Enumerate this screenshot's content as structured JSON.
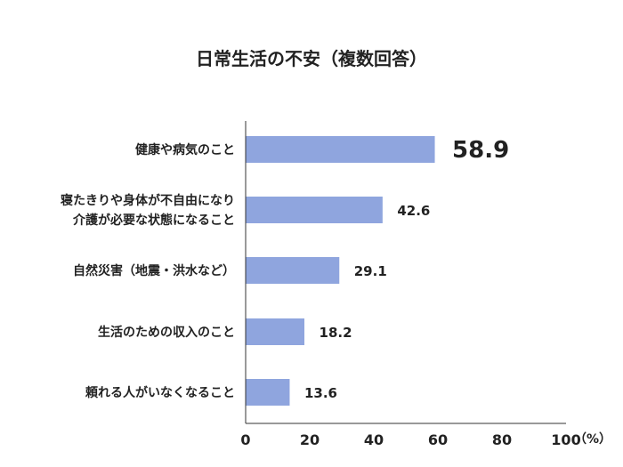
{
  "chart_data": {
    "type": "bar",
    "orientation": "horizontal",
    "title": "日常生活の不安（複数回答）",
    "categories": [
      [
        "健康や病気のこと"
      ],
      [
        "寝たきりや身体が不自由になり",
        "介護が必要な状態になること"
      ],
      [
        "自然災害（地震・洪水など）"
      ],
      [
        "生活のための収入のこと"
      ],
      [
        "頼れる人がいなくなること"
      ]
    ],
    "values": [
      58.9,
      42.6,
      29.1,
      18.2,
      13.6
    ],
    "value_labels": [
      "58.9",
      "42.6",
      "29.1",
      "18.2",
      "13.6"
    ],
    "xlim": [
      0,
      100
    ],
    "x_ticks": [
      "0",
      "20",
      "40",
      "60",
      "80",
      "100"
    ],
    "x_unit": "（%）",
    "bar_color": "#8fa5de",
    "grid": false
  }
}
